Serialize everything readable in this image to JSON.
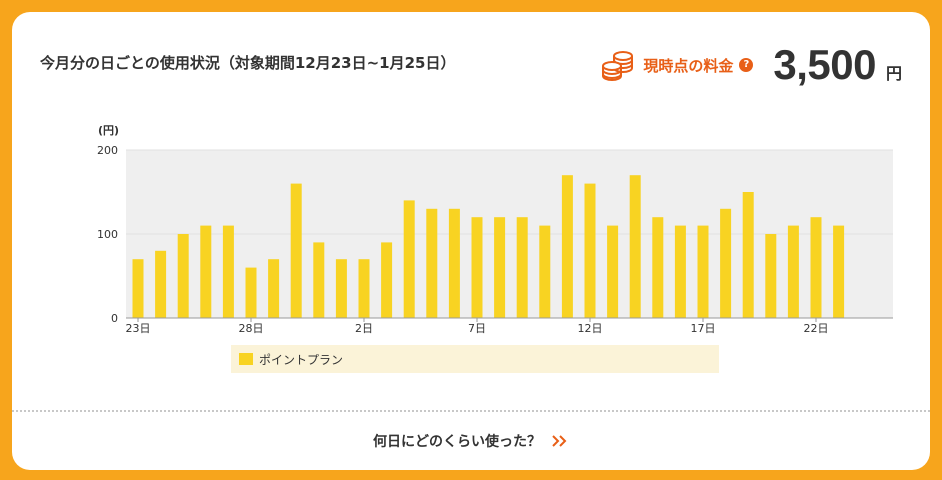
{
  "header": {
    "title": "今月分の日ごとの使用状況（対象期間12月23日~1月25日）"
  },
  "fee": {
    "label": "現時点の料金",
    "help": "?",
    "amount": "3,500",
    "unit": "円",
    "icon": "coins-icon"
  },
  "chart_data": {
    "type": "bar",
    "ylabel": "(円)",
    "ylim": [
      0,
      200
    ],
    "yticks": [
      "0",
      "100",
      "200"
    ],
    "grid": true,
    "legend_position": "bottom",
    "color": "#f8d322",
    "categories": [
      "23日",
      "24日",
      "25日",
      "26日",
      "27日",
      "28日",
      "29日",
      "30日",
      "31日",
      "1日",
      "2日",
      "3日",
      "4日",
      "5日",
      "6日",
      "7日",
      "8日",
      "9日",
      "10日",
      "11日",
      "12日",
      "13日",
      "14日",
      "15日",
      "16日",
      "17日",
      "18日",
      "19日",
      "20日",
      "21日",
      "22日",
      "23日"
    ],
    "xtick_labels": [
      "23日",
      "",
      "",
      "",
      "",
      "28日",
      "",
      "",
      "",
      "",
      "2日",
      "",
      "",
      "",
      "",
      "7日",
      "",
      "",
      "",
      "",
      "12日",
      "",
      "",
      "",
      "",
      "17日",
      "",
      "",
      "",
      "",
      "22日",
      ""
    ],
    "series": [
      {
        "name": "ポイントプラン",
        "values": [
          70,
          80,
          100,
          110,
          110,
          60,
          70,
          160,
          90,
          70,
          70,
          90,
          140,
          130,
          130,
          120,
          120,
          120,
          110,
          170,
          160,
          110,
          170,
          120,
          110,
          110,
          130,
          150,
          100,
          110,
          120,
          110
        ]
      }
    ]
  },
  "legend": {
    "label": "ポイントプラン"
  },
  "footer": {
    "link_label": "何日にどのくらい使った？"
  }
}
